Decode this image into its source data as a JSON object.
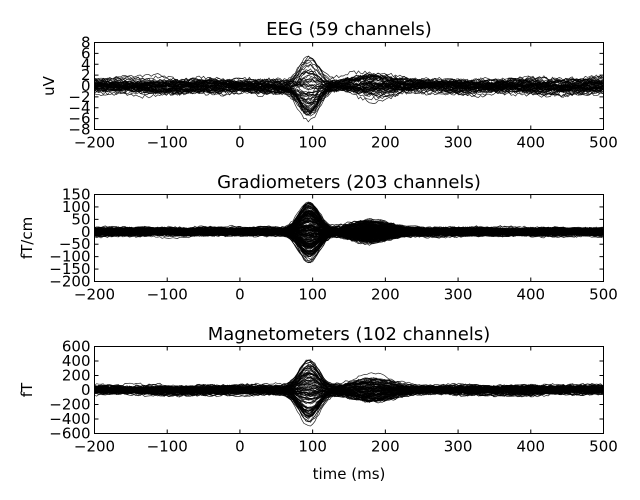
{
  "chart_data": [
    {
      "type": "line",
      "title": "EEG (59 channels)",
      "ylabel": "uV",
      "xlabel": "",
      "channel_count": 59,
      "xlim": [
        -200,
        500
      ],
      "ylim": [
        -8,
        8
      ],
      "x_ticks": [
        -200,
        -100,
        0,
        100,
        200,
        300,
        400,
        500
      ],
      "y_ticks": [
        -8,
        -6,
        -4,
        -2,
        0,
        2,
        4,
        6,
        8
      ],
      "x_tick_labels": [
        "−200",
        "−100",
        "0",
        "100",
        "200",
        "300",
        "400",
        "500"
      ],
      "y_tick_labels": [
        "−8",
        "−6",
        "−4",
        "−2",
        "0",
        "2",
        "4",
        "6",
        "8"
      ],
      "noise_amplitude": 1.3,
      "peak": {
        "time": 95,
        "amplitude": 5.5
      },
      "grid": false,
      "legend": "none"
    },
    {
      "type": "line",
      "title": "Gradiometers (203 channels)",
      "ylabel": "fT/cm",
      "xlabel": "",
      "channel_count": 203,
      "xlim": [
        -200,
        500
      ],
      "ylim": [
        -200,
        150
      ],
      "x_ticks": [
        -200,
        -100,
        0,
        100,
        200,
        300,
        400,
        500
      ],
      "y_ticks": [
        -200,
        -150,
        -100,
        -50,
        0,
        50,
        100,
        150
      ],
      "x_tick_labels": [
        "−200",
        "−100",
        "0",
        "100",
        "200",
        "300",
        "400",
        "500"
      ],
      "y_tick_labels": [
        "−200",
        "−150",
        "−100",
        "−50",
        "0",
        "50",
        "100",
        "150"
      ],
      "noise_amplitude": 15,
      "peak": {
        "time": 95,
        "amplitude": 115
      },
      "grid": false,
      "legend": "none"
    },
    {
      "type": "line",
      "title": "Magnetometers (102 channels)",
      "ylabel": "fT",
      "xlabel": "time (ms)",
      "channel_count": 102,
      "xlim": [
        -200,
        500
      ],
      "ylim": [
        -600,
        600
      ],
      "x_ticks": [
        -200,
        -100,
        0,
        100,
        200,
        300,
        400,
        500
      ],
      "y_ticks": [
        -600,
        -400,
        -200,
        0,
        200,
        400,
        600
      ],
      "x_tick_labels": [
        "−200",
        "−100",
        "0",
        "100",
        "200",
        "300",
        "400",
        "500"
      ],
      "y_tick_labels": [
        "−600",
        "−400",
        "−200",
        "0",
        "200",
        "400",
        "600"
      ],
      "noise_amplitude": 60,
      "peak": {
        "time": 95,
        "amplitude": 430
      },
      "grid": false,
      "legend": "none"
    }
  ]
}
